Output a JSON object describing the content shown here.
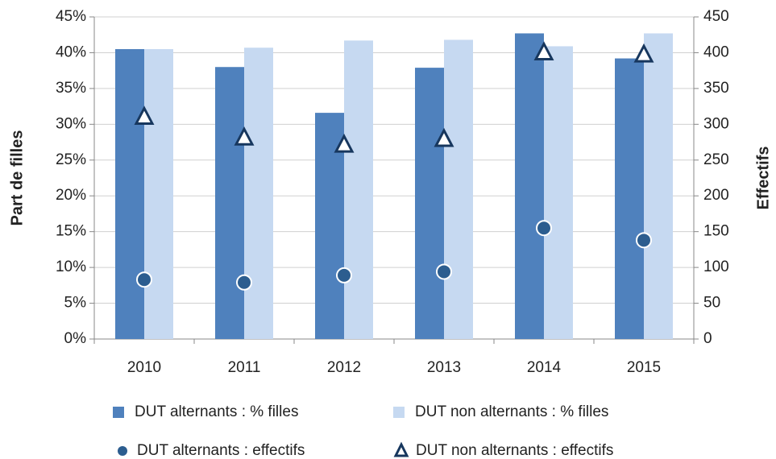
{
  "chart_data": {
    "type": "bar",
    "categories": [
      "2010",
      "2011",
      "2012",
      "2013",
      "2014",
      "2015"
    ],
    "series": [
      {
        "name": "DUT alternants : % filles",
        "color": "#4f81bd",
        "type": "bar",
        "values": [
          40.5,
          38.0,
          31.6,
          37.9,
          42.7,
          39.2
        ]
      },
      {
        "name": "DUT non alternants : % filles",
        "color": "#c6d9f1",
        "type": "bar",
        "values": [
          40.5,
          40.7,
          41.7,
          41.8,
          40.9,
          42.7
        ]
      },
      {
        "name": "DUT alternants : effectifs",
        "color": "#2c5d8f",
        "type": "circle",
        "axis": "y2",
        "values": [
          83,
          79,
          89,
          94,
          155,
          138
        ]
      },
      {
        "name": "DUT non alternants : effectifs",
        "color": "#17375e",
        "type": "triangle",
        "axis": "y2",
        "values": [
          310,
          281,
          271,
          279,
          400,
          397
        ]
      }
    ],
    "ylabel": "Part de filles",
    "y2label": "Effectifs",
    "ylim": [
      0,
      45
    ],
    "yticks": [
      {
        "value": 0,
        "label": "0%"
      },
      {
        "value": 5,
        "label": "5%"
      },
      {
        "value": 10,
        "label": "10%"
      },
      {
        "value": 15,
        "label": "15%"
      },
      {
        "value": 20,
        "label": "20%"
      },
      {
        "value": 25,
        "label": "25%"
      },
      {
        "value": 30,
        "label": "30%"
      },
      {
        "value": 35,
        "label": "35%"
      },
      {
        "value": 40,
        "label": "40%"
      },
      {
        "value": 45,
        "label": "45%"
      }
    ],
    "y2lim": [
      0,
      450
    ],
    "y2ticks": [
      0,
      50,
      100,
      150,
      200,
      250,
      300,
      350,
      400,
      450
    ],
    "grid": true,
    "legend": "bottom"
  }
}
